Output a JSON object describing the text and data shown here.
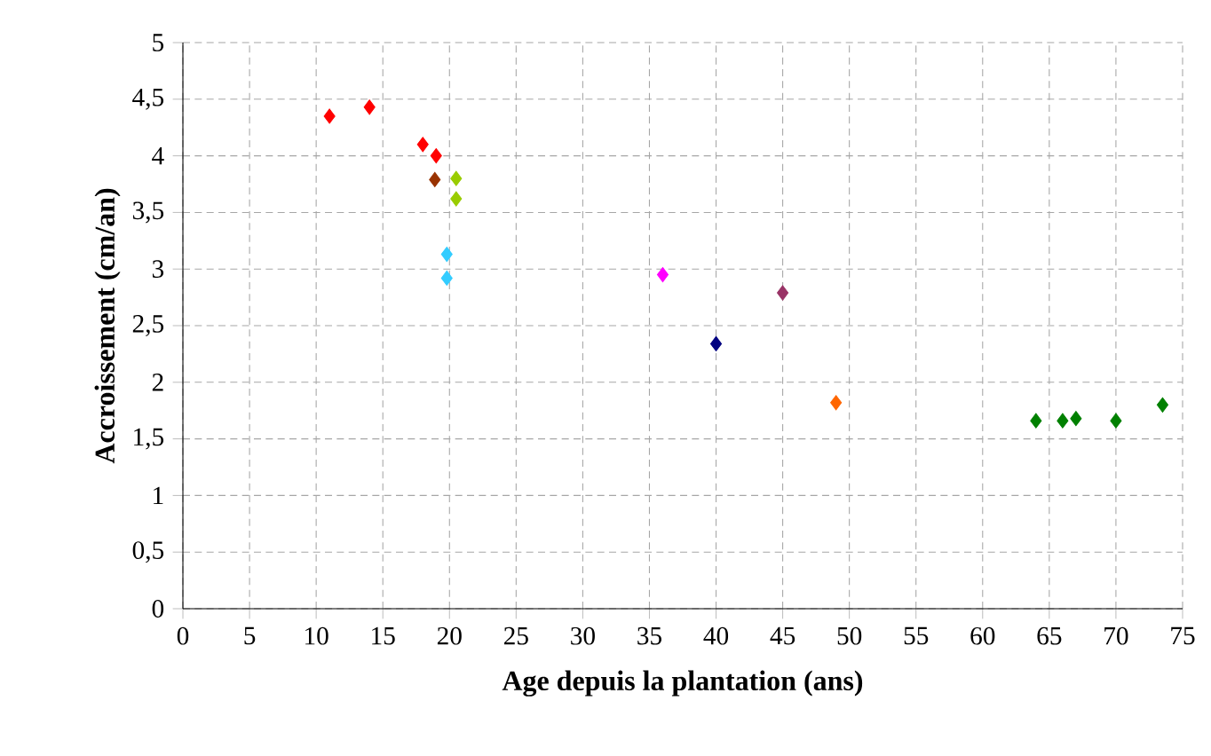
{
  "chart_data": {
    "type": "scatter",
    "xlabel": "Age depuis la plantation (ans)",
    "ylabel": "Accroissement (cm/an)",
    "x": [
      11,
      14,
      18,
      19,
      18.9,
      20.5,
      20.5,
      19.8,
      19.8,
      36,
      45,
      40,
      49,
      64,
      66,
      67,
      70,
      73.5
    ],
    "values": [
      4.35,
      4.43,
      4.1,
      4.0,
      3.79,
      3.8,
      3.62,
      3.13,
      2.92,
      2.95,
      2.79,
      2.34,
      1.82,
      1.66,
      1.66,
      1.68,
      1.66,
      1.8
    ],
    "colors": [
      "#ff0000",
      "#ff0000",
      "#ff0000",
      "#ff0000",
      "#993300",
      "#99cc00",
      "#99cc00",
      "#33ccff",
      "#33ccff",
      "#ff00ff",
      "#993366",
      "#000080",
      "#ff6600",
      "#008000",
      "#008000",
      "#008000",
      "#008000",
      "#008000"
    ],
    "marker": "diamond",
    "grid": true,
    "xlim": [
      0,
      75
    ],
    "xticks": [
      0,
      5,
      10,
      15,
      20,
      25,
      30,
      35,
      40,
      45,
      50,
      55,
      60,
      65,
      70,
      75
    ],
    "ylim": [
      0,
      5
    ],
    "yticks": [
      0,
      {
        "value": 0.5,
        "label": "0,5"
      },
      1,
      {
        "value": 1.5,
        "label": "1,5"
      },
      2,
      {
        "value": 2.5,
        "label": "2,5"
      },
      3,
      {
        "value": 3.5,
        "label": "3,5"
      },
      4,
      {
        "value": 4.5,
        "label": "4,5"
      },
      5
    ]
  }
}
